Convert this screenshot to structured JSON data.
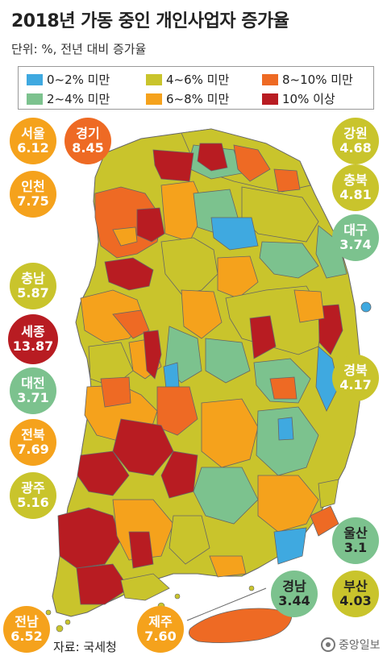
{
  "title": "2018년 가동 중인 개인사업자 증가율",
  "subtitle": "단위: %, 전년 대비 증가율",
  "legend": [
    {
      "label": "0~2% 미만",
      "color": "#3fa9e0"
    },
    {
      "label": "4~6% 미만",
      "color": "#c9c42c"
    },
    {
      "label": "8~10% 미만",
      "color": "#ee6a24"
    },
    {
      "label": "2~4% 미만",
      "color": "#7cc28e"
    },
    {
      "label": "6~8% 미만",
      "color": "#f5a21c"
    },
    {
      "label": "10% 이상",
      "color": "#b81c22"
    }
  ],
  "regions": [
    {
      "name": "서울",
      "value": "6.12",
      "color": "#f5a21c",
      "text": "#ffffff"
    },
    {
      "name": "경기",
      "value": "8.45",
      "color": "#ee6a24",
      "text": "#ffffff"
    },
    {
      "name": "인천",
      "value": "7.75",
      "color": "#f5a21c",
      "text": "#ffffff"
    },
    {
      "name": "충남",
      "value": "5.87",
      "color": "#c9c42c",
      "text": "#ffffff"
    },
    {
      "name": "세종",
      "value": "13.87",
      "color": "#b81c22",
      "text": "#ffffff"
    },
    {
      "name": "대전",
      "value": "3.71",
      "color": "#7cc28e",
      "text": "#ffffff"
    },
    {
      "name": "전북",
      "value": "7.69",
      "color": "#f5a21c",
      "text": "#ffffff"
    },
    {
      "name": "광주",
      "value": "5.16",
      "color": "#c9c42c",
      "text": "#ffffff"
    },
    {
      "name": "전남",
      "value": "6.52",
      "color": "#f5a21c",
      "text": "#ffffff"
    },
    {
      "name": "제주",
      "value": "7.60",
      "color": "#f5a21c",
      "text": "#ffffff"
    },
    {
      "name": "강원",
      "value": "4.68",
      "color": "#c9c42c",
      "text": "#ffffff"
    },
    {
      "name": "충북",
      "value": "4.81",
      "color": "#c9c42c",
      "text": "#ffffff"
    },
    {
      "name": "대구",
      "value": "3.74",
      "color": "#7cc28e",
      "text": "#ffffff"
    },
    {
      "name": "경북",
      "value": "4.17",
      "color": "#c9c42c",
      "text": "#ffffff"
    },
    {
      "name": "울산",
      "value": "3.1",
      "color": "#7cc28e",
      "text": "#222222"
    },
    {
      "name": "경남",
      "value": "3.44",
      "color": "#7cc28e",
      "text": "#222222"
    },
    {
      "name": "부산",
      "value": "4.03",
      "color": "#c9c42c",
      "text": "#222222"
    }
  ],
  "source": "자료: 국세청",
  "logo": "중앙일보"
}
